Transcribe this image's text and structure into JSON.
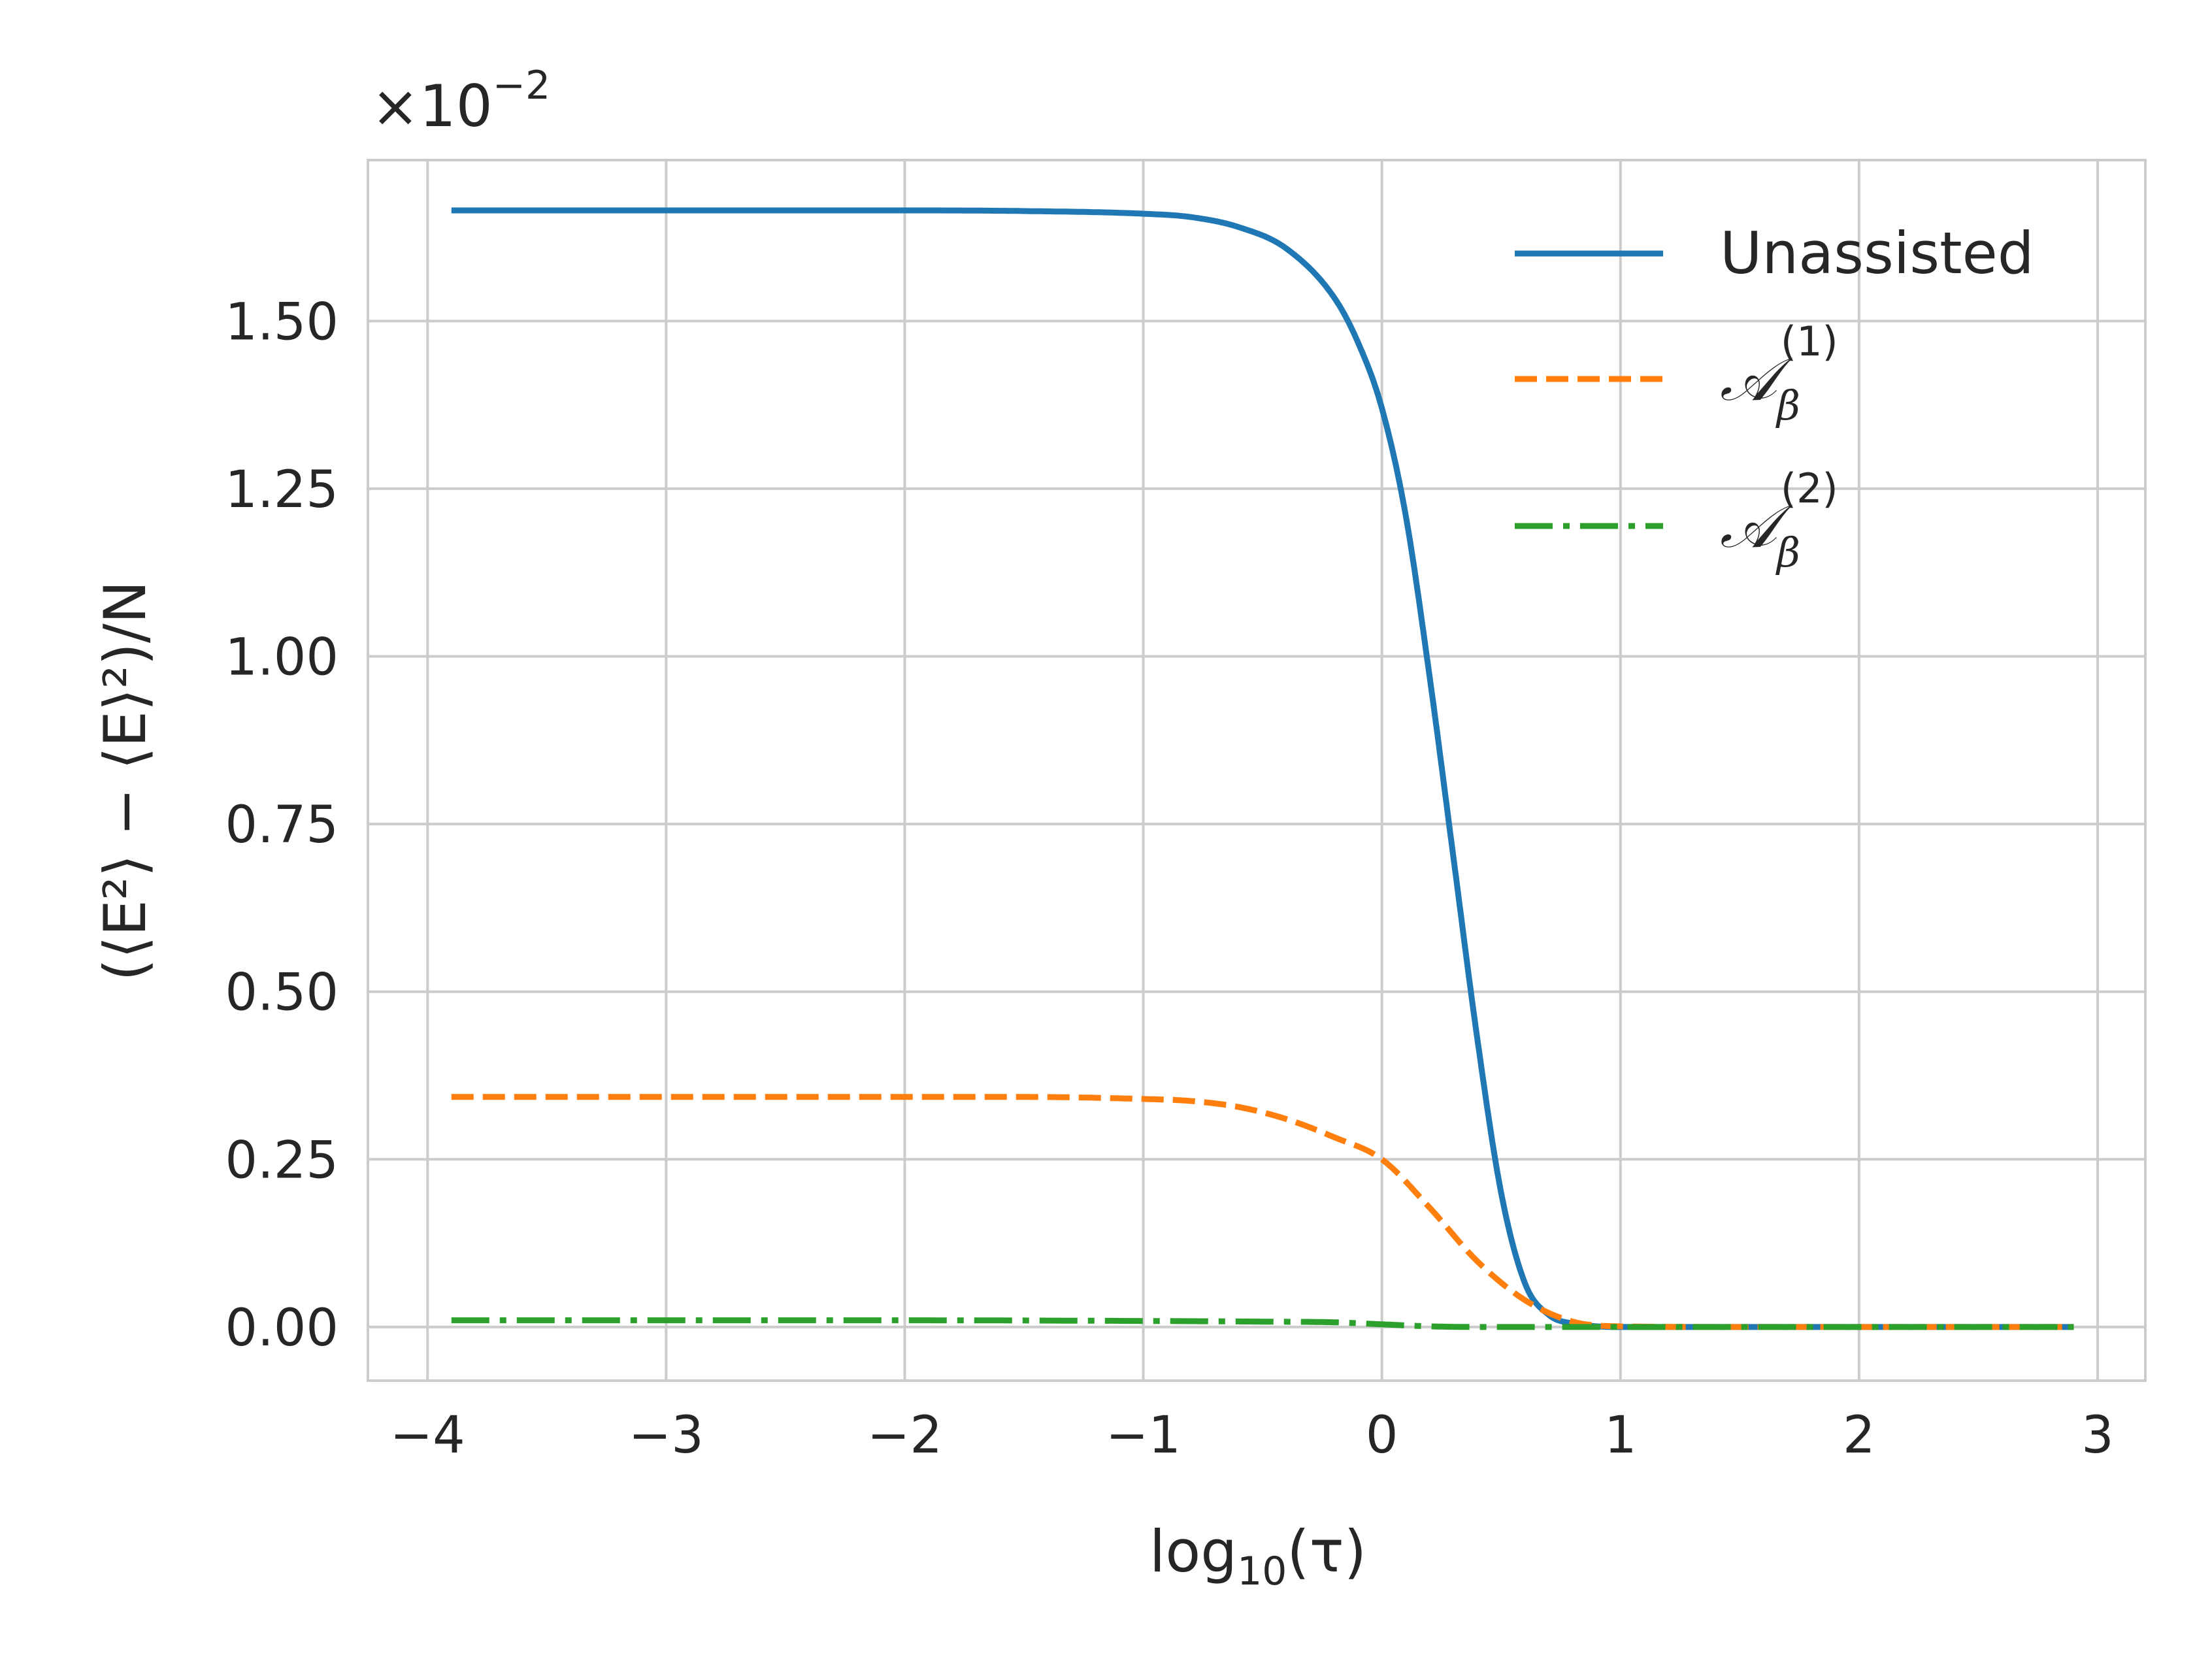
{
  "chart_data": {
    "type": "line",
    "xlabel": "log10(τ)",
    "xlabel_parts": {
      "base": "log",
      "sub": "10",
      "rest": "(τ)"
    },
    "ylabel": "(⟨E²⟩ − ⟨E⟩²)/N",
    "offset_text": "×10⁻²",
    "offset_parts": {
      "base": "×10",
      "exp": "−2"
    },
    "xlim": [
      -4.25,
      3.2
    ],
    "ylim": [
      -0.08,
      1.74
    ],
    "x_ticks": [
      -4,
      -3,
      -2,
      -1,
      0,
      1,
      2,
      3
    ],
    "x_tick_labels": [
      "−4",
      "−3",
      "−2",
      "−1",
      "0",
      "1",
      "2",
      "3"
    ],
    "y_ticks": [
      0.0,
      0.25,
      0.5,
      0.75,
      1.0,
      1.25,
      1.5
    ],
    "y_tick_labels": [
      "0.00",
      "0.25",
      "0.50",
      "0.75",
      "1.00",
      "1.25",
      "1.50"
    ],
    "grid": true,
    "legend_position": "top-right",
    "series": [
      {
        "name": "Unassisted",
        "color": "#1f77b4",
        "style": "solid",
        "x": [
          -3.9,
          -3.0,
          -2.0,
          -1.5,
          -1.0,
          -0.8,
          -0.6,
          -0.4,
          -0.2,
          -0.1,
          0.0,
          0.1,
          0.2,
          0.3,
          0.4,
          0.5,
          0.6,
          0.7,
          0.8,
          0.9,
          1.0,
          1.5,
          2.0,
          2.5,
          2.9
        ],
        "y": [
          1.665,
          1.665,
          1.665,
          1.664,
          1.66,
          1.655,
          1.64,
          1.608,
          1.535,
          1.468,
          1.37,
          1.21,
          0.97,
          0.7,
          0.43,
          0.2,
          0.065,
          0.018,
          0.005,
          0.001,
          0.0,
          0.0,
          0.0,
          0.0,
          0.0
        ]
      },
      {
        "name": "A_β^(1)",
        "label_parts": {
          "base": "𝒜",
          "sub": "β",
          "sup": "(1)"
        },
        "color": "#ff7f0e",
        "style": "dashed",
        "x": [
          -3.9,
          -3.0,
          -2.0,
          -1.5,
          -1.0,
          -0.8,
          -0.6,
          -0.4,
          -0.2,
          0.0,
          0.2,
          0.4,
          0.6,
          0.8,
          1.0,
          1.5,
          2.0,
          2.5,
          2.9
        ],
        "y": [
          0.343,
          0.343,
          0.343,
          0.343,
          0.34,
          0.337,
          0.328,
          0.31,
          0.283,
          0.25,
          0.178,
          0.098,
          0.04,
          0.008,
          0.001,
          0.0,
          0.0,
          0.0,
          0.0
        ]
      },
      {
        "name": "A_β^(2)",
        "label_parts": {
          "base": "𝒜",
          "sub": "β",
          "sup": "(2)"
        },
        "color": "#2ca02c",
        "style": "dashdot",
        "x": [
          -3.9,
          -3.0,
          -2.0,
          -1.0,
          -0.5,
          -0.2,
          0.0,
          0.2,
          0.4,
          0.6,
          0.8,
          1.0,
          1.5,
          2.0,
          2.5,
          2.9
        ],
        "y": [
          0.01,
          0.01,
          0.01,
          0.009,
          0.008,
          0.007,
          0.004,
          0.001,
          0.0,
          0.0,
          0.0,
          0.0,
          0.0,
          0.0,
          0.0,
          0.0
        ]
      }
    ]
  }
}
